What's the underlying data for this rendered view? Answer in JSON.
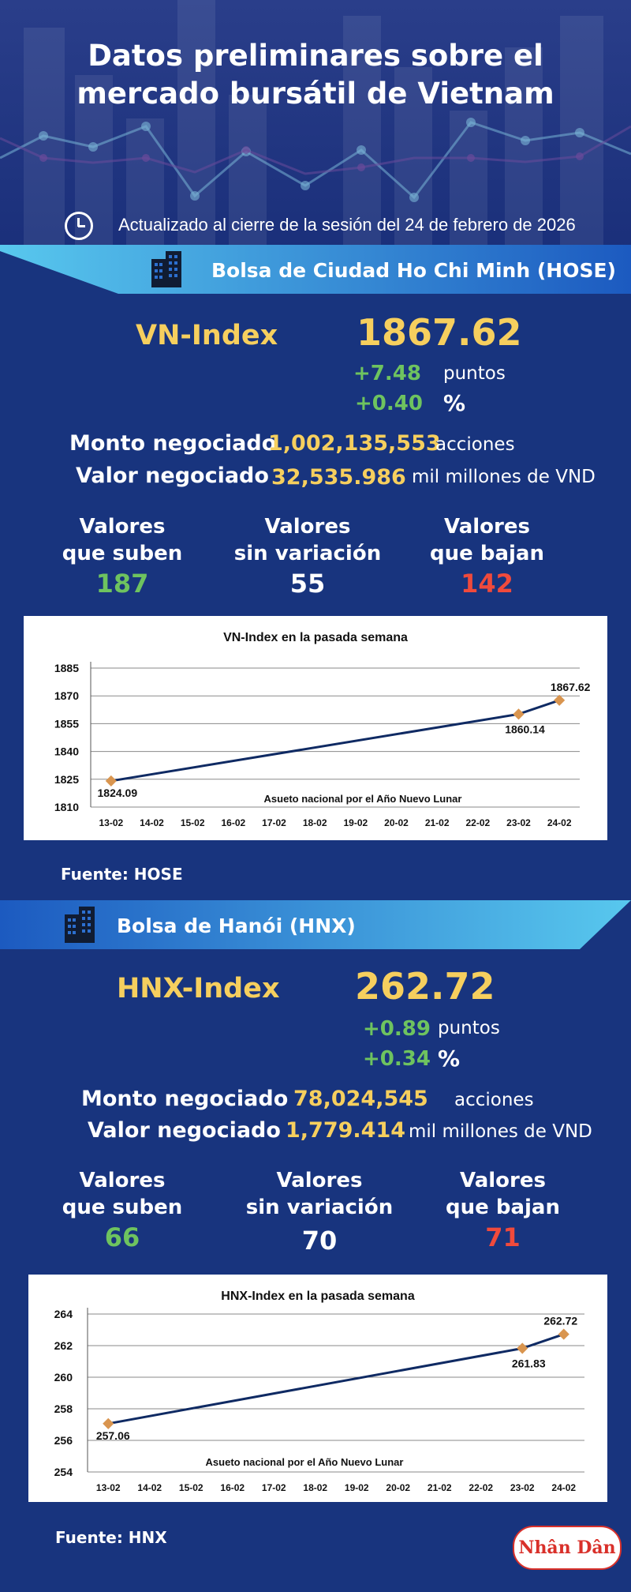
{
  "header": {
    "title_line1": "Datos preliminares sobre el",
    "title_line2": "mercado bursátil de Vietnam",
    "updated": "Actualizado al cierre de la sesión del 24 de febrero de 2026"
  },
  "hose": {
    "banner": "Bolsa de Ciudad Ho Chi Minh (HOSE)",
    "index_name": "VN-Index",
    "index_value": "1867.62",
    "change_points": "+7.48",
    "points_label": "puntos",
    "change_percent": "+0.40",
    "percent_label": "%",
    "volume_label": "Monto negociado",
    "volume_value": "1,002,135,553",
    "volume_unit": "acciones",
    "value_label": "Valor negociado",
    "value_value": "32,535.986",
    "value_unit": "mil millones de VND",
    "up_label_1": "Valores",
    "up_label_2": "que suben",
    "up_value": "187",
    "flat_label_1": "Valores",
    "flat_label_2": "sin variación",
    "flat_value": "55",
    "down_label_1": "Valores",
    "down_label_2": "que bajan",
    "down_value": "142",
    "source": "Fuente: HOSE"
  },
  "hnx": {
    "banner": "Bolsa de Hanói (HNX)",
    "index_name": "HNX-Index",
    "index_value": "262.72",
    "change_points": "+0.89",
    "points_label": "puntos",
    "change_percent": "+0.34",
    "percent_label": "%",
    "volume_label": "Monto negociado",
    "volume_value": "78,024,545",
    "volume_unit": "acciones",
    "value_label": "Valor negociado",
    "value_value": "1,779.414",
    "value_unit": "mil millones de VND",
    "up_label_1": "Valores",
    "up_label_2": "que suben",
    "up_value": "66",
    "flat_label_1": "Valores",
    "flat_label_2": "sin variación",
    "flat_value": "70",
    "down_label_1": "Valores",
    "down_label_2": "que bajan",
    "down_value": "71",
    "source": "Fuente:  HNX"
  },
  "logo_text": "Nhân Dân",
  "colors": {
    "background": "#18347e",
    "accent_yellow": "#f6cf5e",
    "up_green": "#6ec35f",
    "down_red": "#f04a3c",
    "banner_cyan": "#46bde6",
    "line_navy": "#0f2a63",
    "marker_orange": "#d9954f"
  },
  "chart_data": [
    {
      "type": "line",
      "title": "VN-Index en la pasada semana",
      "categories": [
        "13-02",
        "14-02",
        "15-02",
        "16-02",
        "17-02",
        "18-02",
        "19-02",
        "20-02",
        "21-02",
        "22-02",
        "23-02",
        "24-02"
      ],
      "points": [
        {
          "x": "13-02",
          "y": 1824.09,
          "label": "1824.09"
        },
        {
          "x": "23-02",
          "y": 1860.14,
          "label": "1860.14"
        },
        {
          "x": "24-02",
          "y": 1867.62,
          "label": "1867.62"
        }
      ],
      "yticks": [
        "1810",
        "1825",
        "1840",
        "1855",
        "1870",
        "1885"
      ],
      "ylim": [
        1810,
        1885
      ],
      "annotation": "Asueto nacional por el Año Nuevo Lunar",
      "grid": true
    },
    {
      "type": "line",
      "title": "HNX-Index en la pasada semana",
      "categories": [
        "13-02",
        "14-02",
        "15-02",
        "16-02",
        "17-02",
        "18-02",
        "19-02",
        "20-02",
        "21-02",
        "22-02",
        "23-02",
        "24-02"
      ],
      "points": [
        {
          "x": "13-02",
          "y": 257.06,
          "label": "257.06"
        },
        {
          "x": "23-02",
          "y": 261.83,
          "label": "261.83"
        },
        {
          "x": "24-02",
          "y": 262.72,
          "label": "262.72"
        }
      ],
      "yticks": [
        "254",
        "256",
        "258",
        "260",
        "262",
        "264"
      ],
      "ylim": [
        254,
        264
      ],
      "annotation": "Asueto nacional por el Año Nuevo Lunar",
      "grid": true
    }
  ]
}
